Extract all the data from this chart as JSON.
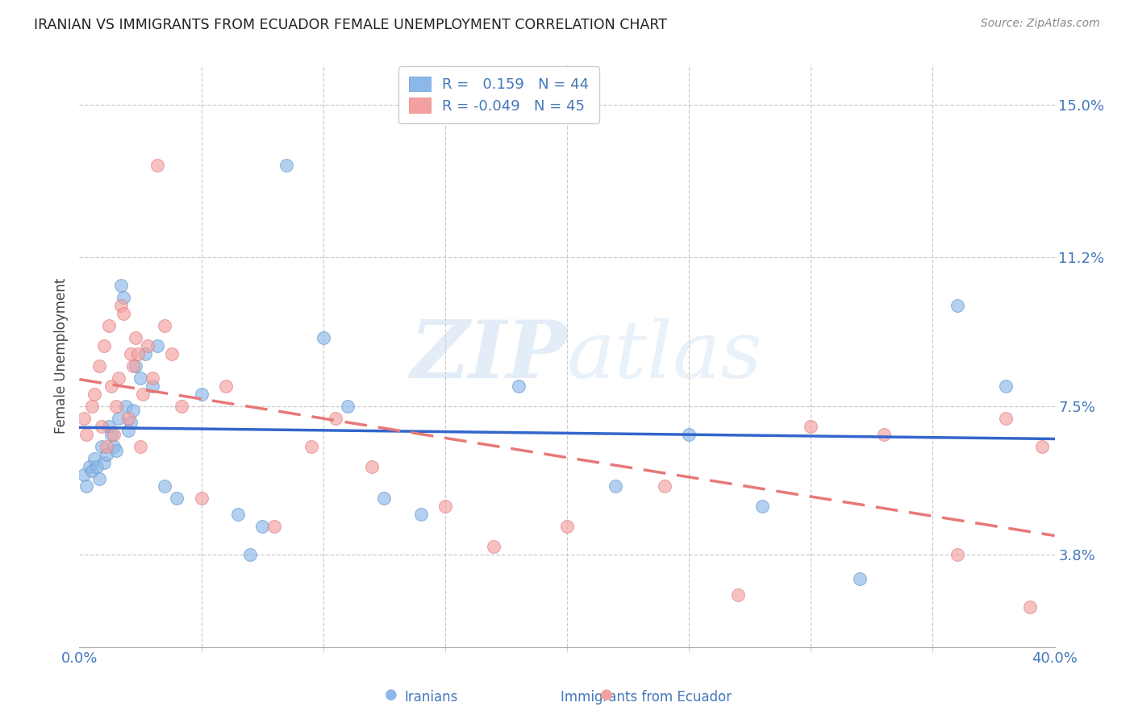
{
  "title": "IRANIAN VS IMMIGRANTS FROM ECUADOR FEMALE UNEMPLOYMENT CORRELATION CHART",
  "source": "Source: ZipAtlas.com",
  "ylabel": "Female Unemployment",
  "yticks": [
    3.8,
    7.5,
    11.2,
    15.0
  ],
  "ytick_labels": [
    "3.8%",
    "7.5%",
    "11.2%",
    "15.0%"
  ],
  "xmin": 0.0,
  "xmax": 40.0,
  "ymin": 1.5,
  "ymax": 16.0,
  "legend_r1": "R =   0.159   N = 44",
  "legend_r2": "R = -0.049   N = 45",
  "blue_color": "#8BB8E8",
  "pink_color": "#F4A0A0",
  "blue_line_color": "#3366CC",
  "pink_line_color": "#E87878",
  "axis_color": "#4477BB",
  "watermark_zip": "ZIP",
  "watermark_atlas": "atlas",
  "iranians_x": [
    0.2,
    0.3,
    0.4,
    0.5,
    0.6,
    0.7,
    0.8,
    0.9,
    1.0,
    1.1,
    1.2,
    1.3,
    1.4,
    1.5,
    1.6,
    1.7,
    1.8,
    1.9,
    2.0,
    2.1,
    2.2,
    2.3,
    2.5,
    2.7,
    3.0,
    3.2,
    3.5,
    4.0,
    5.0,
    6.5,
    7.0,
    7.5,
    8.5,
    10.0,
    11.0,
    12.5,
    14.0,
    18.0,
    22.0,
    25.0,
    28.0,
    32.0,
    36.0,
    38.0
  ],
  "iranians_y": [
    5.8,
    5.5,
    6.0,
    5.9,
    6.2,
    6.0,
    5.7,
    6.5,
    6.1,
    6.3,
    7.0,
    6.8,
    6.5,
    6.4,
    7.2,
    10.5,
    10.2,
    7.5,
    6.9,
    7.1,
    7.4,
    8.5,
    8.2,
    8.8,
    8.0,
    9.0,
    5.5,
    5.2,
    7.8,
    4.8,
    3.8,
    4.5,
    13.5,
    9.2,
    7.5,
    5.2,
    4.8,
    8.0,
    5.5,
    6.8,
    5.0,
    3.2,
    10.0,
    8.0
  ],
  "ecuador_x": [
    0.2,
    0.3,
    0.5,
    0.6,
    0.8,
    0.9,
    1.0,
    1.1,
    1.2,
    1.3,
    1.4,
    1.5,
    1.6,
    1.7,
    1.8,
    2.0,
    2.1,
    2.2,
    2.3,
    2.4,
    2.5,
    2.6,
    2.8,
    3.0,
    3.2,
    3.5,
    3.8,
    4.2,
    5.0,
    6.0,
    8.0,
    9.5,
    10.5,
    12.0,
    15.0,
    17.0,
    20.0,
    24.0,
    27.0,
    30.0,
    33.0,
    36.0,
    38.0,
    39.0,
    39.5
  ],
  "ecuador_y": [
    7.2,
    6.8,
    7.5,
    7.8,
    8.5,
    7.0,
    9.0,
    6.5,
    9.5,
    8.0,
    6.8,
    7.5,
    8.2,
    10.0,
    9.8,
    7.2,
    8.8,
    8.5,
    9.2,
    8.8,
    6.5,
    7.8,
    9.0,
    8.2,
    13.5,
    9.5,
    8.8,
    7.5,
    5.2,
    8.0,
    4.5,
    6.5,
    7.2,
    6.0,
    5.0,
    4.0,
    4.5,
    5.5,
    2.8,
    7.0,
    6.8,
    3.8,
    7.2,
    2.5,
    6.5
  ]
}
